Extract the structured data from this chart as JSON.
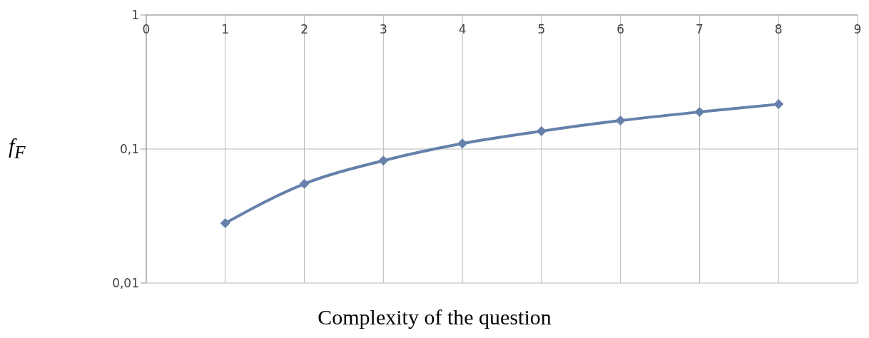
{
  "chart_data": {
    "type": "line",
    "xlabel": "Complexity of the question",
    "ylabel": "f$_{F}$",
    "x": [
      1,
      2,
      3,
      4,
      5,
      6,
      7,
      8
    ],
    "series": [
      {
        "color": "#6580aa",
        "values": [
          0.028,
          0.055,
          0.082,
          0.11,
          0.136,
          0.163,
          0.189,
          0.216
        ]
      }
    ],
    "xlim": [
      0,
      9
    ],
    "xticks": [
      0,
      1,
      2,
      3,
      4,
      5,
      6,
      7,
      8,
      9
    ],
    "ylim": [
      0.01,
      1
    ],
    "yticks": [
      {
        "value": 0.01,
        "label": "0,01"
      },
      {
        "value": 0.1,
        "label": "0,1"
      },
      1
    ],
    "log": "y",
    "grid": true,
    "marker": "diamond",
    "line_style": "solid",
    "legend": false
  }
}
